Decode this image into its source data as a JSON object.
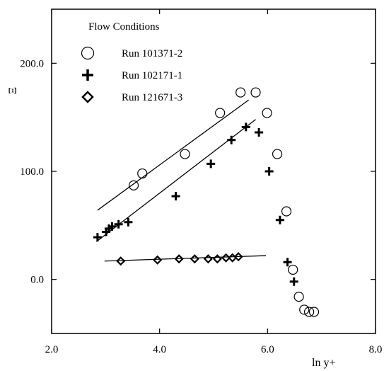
{
  "chart_data": {
    "type": "scatter",
    "title": "",
    "xlabel": "ln y+",
    "ylabel": "Ξ",
    "xlim": [
      2.0,
      8.0
    ],
    "ylim": [
      -50,
      250
    ],
    "grid": false,
    "legend_title": "Flow Conditions",
    "legend_position": "top-left",
    "x_ticks": [
      {
        "value": 2.0,
        "label": "2.0"
      },
      {
        "value": 4.0,
        "label": "4.0"
      },
      {
        "value": 6.0,
        "label": "6.0"
      },
      {
        "value": 8.0,
        "label": "8.0"
      }
    ],
    "y_ticks": [
      {
        "value": 0,
        "label": "0.0"
      },
      {
        "value": 100,
        "label": "100.0"
      },
      {
        "value": 200,
        "label": "200.0"
      }
    ],
    "series": [
      {
        "name": "Run 101371-2",
        "marker": "circle",
        "points": [
          [
            3.52,
            87
          ],
          [
            3.68,
            98
          ],
          [
            4.47,
            116
          ],
          [
            5.12,
            154
          ],
          [
            5.5,
            173
          ],
          [
            5.78,
            173
          ],
          [
            5.99,
            154
          ],
          [
            6.18,
            116
          ],
          [
            6.35,
            63
          ],
          [
            6.47,
            9
          ],
          [
            6.58,
            -16
          ],
          [
            6.68,
            -28
          ],
          [
            6.77,
            -30
          ],
          [
            6.86,
            -30
          ]
        ],
        "fit_line": [
          [
            2.85,
            64
          ],
          [
            5.65,
            166
          ]
        ]
      },
      {
        "name": "Run 102171-1",
        "marker": "plus",
        "points": [
          [
            2.85,
            39
          ],
          [
            3.01,
            44
          ],
          [
            3.06,
            47
          ],
          [
            3.12,
            49
          ],
          [
            3.24,
            51
          ],
          [
            3.42,
            53
          ],
          [
            4.3,
            77
          ],
          [
            4.95,
            107
          ],
          [
            5.33,
            129
          ],
          [
            5.6,
            141
          ],
          [
            5.84,
            136
          ],
          [
            6.03,
            100
          ],
          [
            6.23,
            55
          ],
          [
            6.37,
            16
          ],
          [
            6.49,
            -2
          ]
        ],
        "fit_line": [
          [
            2.83,
            35
          ],
          [
            5.78,
            148
          ]
        ]
      },
      {
        "name": "Run 121671-3",
        "marker": "diamond",
        "points": [
          [
            3.28,
            17
          ],
          [
            3.96,
            18
          ],
          [
            4.36,
            19
          ],
          [
            4.65,
            19
          ],
          [
            4.9,
            19
          ],
          [
            5.07,
            19
          ],
          [
            5.23,
            20
          ],
          [
            5.35,
            20
          ],
          [
            5.46,
            21
          ]
        ],
        "fit_line": [
          [
            2.98,
            17
          ],
          [
            5.97,
            22
          ]
        ]
      }
    ]
  }
}
